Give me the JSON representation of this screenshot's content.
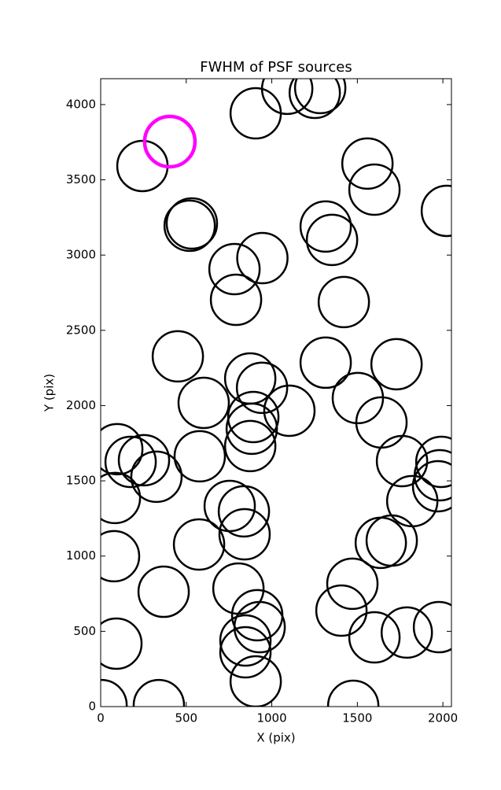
{
  "chart_data": {
    "type": "scatter",
    "title": "FWHM of PSF sources",
    "x_label": "X (pix)",
    "y_label": "Y (pix)",
    "xlim": [
      0,
      2050
    ],
    "ylim": [
      0,
      4172
    ],
    "xticks": [
      0,
      500,
      1000,
      1500,
      2000
    ],
    "yticks": [
      0,
      500,
      1000,
      1500,
      2000,
      2500,
      3000,
      3500,
      4000
    ],
    "grid": false,
    "series": [
      {
        "color": "#000000",
        "x": [
          906,
          1090,
          1251,
          1283,
          244,
          520,
          533,
          1559,
          1600,
          2023,
          1315,
          1352,
          782,
          945,
          791,
          1421,
          451,
          1315,
          1729,
          874,
          943,
          602,
          1503,
          1103,
          892,
          1641,
          883,
          97,
          175,
          253,
          579,
          874,
          326,
          1761,
          1991,
          1982,
          1972,
          1821,
          83,
          754,
          837,
          841,
          575,
          1637,
          1701,
          78,
          368,
          805,
          1471,
          1407,
          915,
          929,
          846,
          846,
          1600,
          1789,
          1977,
          92,
          906,
          5,
          340,
          1476
        ],
        "y": [
          3942,
          4105,
          4078,
          4110,
          3592,
          3195,
          3210,
          3608,
          3435,
          3294,
          3190,
          3101,
          2907,
          2980,
          2703,
          2688,
          2327,
          2285,
          2275,
          2180,
          2118,
          2018,
          2050,
          1966,
          1924,
          1888,
          1846,
          1710,
          1626,
          1637,
          1663,
          1731,
          1527,
          1631,
          1626,
          1537,
          1464,
          1365,
          1386,
          1333,
          1297,
          1145,
          1077,
          1088,
          1103,
          999,
          763,
          784,
          816,
          638,
          607,
          528,
          439,
          361,
          460,
          492,
          528,
          418,
          167,
          10,
          10,
          5
        ]
      },
      {
        "color": "#ff00ff",
        "x": [
          404
        ],
        "y": [
          3754
        ]
      }
    ]
  }
}
